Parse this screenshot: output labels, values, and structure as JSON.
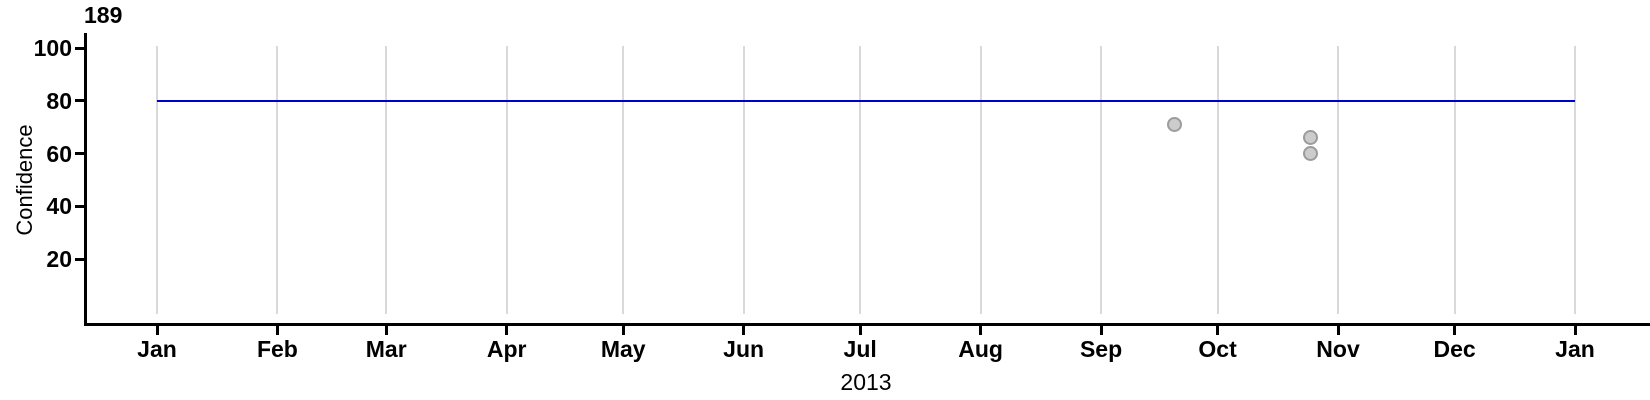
{
  "chart_data": {
    "type": "scatter",
    "title": "",
    "xlabel": "2013",
    "ylabel": "Confidence",
    "annotation": {
      "text": "189"
    },
    "grid": "vertical-month-gridlines-only",
    "legend": "none",
    "x_axis": {
      "start_date": "2013-01-01",
      "end_date": "2014-01-01",
      "ticks": [
        {
          "date": "2013-01-01",
          "label": "Jan"
        },
        {
          "date": "2013-02-01",
          "label": "Feb"
        },
        {
          "date": "2013-03-01",
          "label": "Mar"
        },
        {
          "date": "2013-04-01",
          "label": "Apr"
        },
        {
          "date": "2013-05-01",
          "label": "May"
        },
        {
          "date": "2013-06-01",
          "label": "Jun"
        },
        {
          "date": "2013-07-01",
          "label": "Jul"
        },
        {
          "date": "2013-08-01",
          "label": "Aug"
        },
        {
          "date": "2013-09-01",
          "label": "Sep"
        },
        {
          "date": "2013-10-01",
          "label": "Oct"
        },
        {
          "date": "2013-11-01",
          "label": "Nov"
        },
        {
          "date": "2013-12-01",
          "label": "Dec"
        },
        {
          "date": "2014-01-01",
          "label": "Jan"
        }
      ]
    },
    "y_axis": {
      "min": 0,
      "max": 100,
      "ticks": [
        20,
        40,
        60,
        80,
        100
      ]
    },
    "reference_line": {
      "value": 80,
      "color": "#0000CC"
    },
    "points": [
      {
        "date": "2013-09-20",
        "value": 71
      },
      {
        "date": "2013-10-25",
        "value": 66
      },
      {
        "date": "2013-10-25",
        "value": 60
      }
    ],
    "colors": {
      "axis": "#000000",
      "gridline": "#D9D9D9",
      "point_fill": "#CCCCCC",
      "point_stroke": "#9C9C9C",
      "reference_line": "#0000CC",
      "text": "#000000"
    }
  }
}
